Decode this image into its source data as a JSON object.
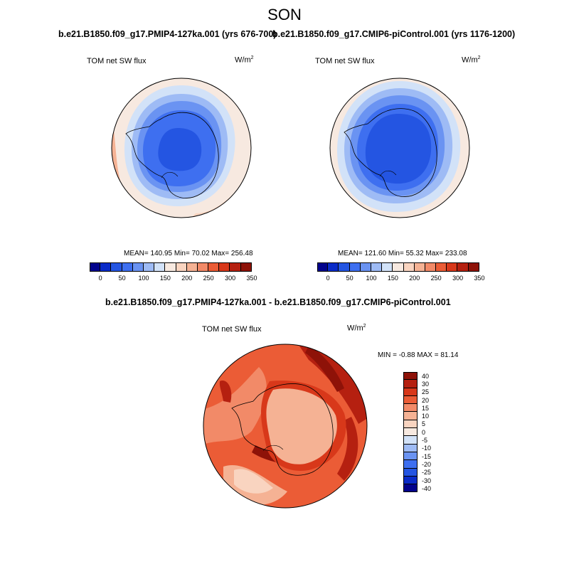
{
  "figure": {
    "season": "SON"
  },
  "panel_left": {
    "title": "b.e21.B1850.f09_g17.PMIP4-127ka.001 (yrs 676-700)",
    "variable": "TOM net SW flux",
    "unit_base": "W/m",
    "unit_exp": "2",
    "stats": "MEAN= 140.95  Min=  70.02  Max= 256.48"
  },
  "panel_right": {
    "title": "b.e21.B1850.f09_g17.CMIP6-piControl.001 (yrs 1176-1200)",
    "variable": "TOM net SW flux",
    "unit_base": "W/m",
    "unit_exp": "2",
    "stats": "MEAN= 121.60  Min=  55.32  Max= 233.08"
  },
  "panel_diff": {
    "title": "b.e21.B1850.f09_g17.PMIP4-127ka.001 - b.e21.B1850.f09_g17.CMIP6-piControl.001",
    "variable": "TOM net SW flux",
    "unit_base": "W/m",
    "unit_exp": "2",
    "stats": "MIN =  -0.88 MAX =  81.14"
  },
  "colorbar_abs": {
    "ticks": [
      "0",
      "50",
      "100",
      "150",
      "200",
      "250",
      "300",
      "350"
    ],
    "colors": [
      "#02028c",
      "#0a2bc8",
      "#2455e2",
      "#3e6ff0",
      "#6a93f2",
      "#9ebbf5",
      "#d2e2f8",
      "#f7e9e0",
      "#f9d4c0",
      "#f5b294",
      "#f28a68",
      "#eb5c36",
      "#d8381a",
      "#b52010",
      "#8e1208"
    ]
  },
  "colorbar_diff": {
    "labels": [
      "40",
      "30",
      "25",
      "20",
      "15",
      "10",
      "5",
      "0",
      "-5",
      "-10",
      "-15",
      "-20",
      "-25",
      "-30",
      "-40"
    ],
    "colors": [
      "#8e1208",
      "#b52010",
      "#d8381a",
      "#eb5c36",
      "#f28a68",
      "#f5b294",
      "#f9d4c0",
      "#f7e9e0",
      "#d2e2f8",
      "#9ebbf5",
      "#6a93f2",
      "#3e6ff0",
      "#2455e2",
      "#0a2bc8",
      "#02028c"
    ]
  }
}
